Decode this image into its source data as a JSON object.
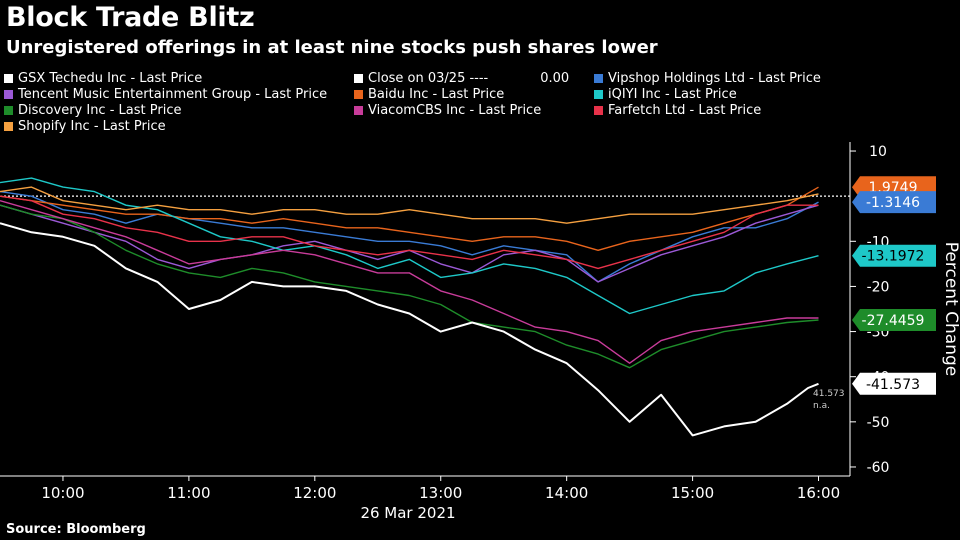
{
  "title": "Block Trade Blitz",
  "subtitle": "Unregistered offerings in at least nine stocks push shares lower",
  "source": "Source: Bloomberg",
  "legend": {
    "items": [
      {
        "label": "GSX Techedu Inc - Last Price",
        "color": "#ffffff",
        "extra": ""
      },
      {
        "label": "Close on 03/25 ----",
        "color": "#ffffff",
        "extra": "0.00"
      },
      {
        "label": "Vipshop Holdings Ltd - Last Price",
        "color": "#3a7bd5",
        "extra": ""
      },
      {
        "label": "Tencent Music Entertainment Group - Last Price",
        "color": "#9b59d6",
        "extra": ""
      },
      {
        "label": "Baidu Inc - Last Price",
        "color": "#e8641c",
        "extra": ""
      },
      {
        "label": "iQIYI Inc - Last Price",
        "color": "#1ec8c8",
        "extra": ""
      },
      {
        "label": "Discovery Inc - Last Price",
        "color": "#1e8c2a",
        "extra": ""
      },
      {
        "label": "ViacomCBS Inc - Last Price",
        "color": "#c83c9a",
        "extra": ""
      },
      {
        "label": "Farfetch Ltd - Last Price",
        "color": "#e8324a",
        "extra": ""
      },
      {
        "label": "Shopify Inc - Last Price",
        "color": "#f5a040",
        "extra": ""
      }
    ]
  },
  "chart_data": {
    "type": "line",
    "xlabel": "26 Mar 2021",
    "ylabel": "Percent Change",
    "x_ticks": [
      "10:00",
      "11:00",
      "12:00",
      "13:00",
      "14:00",
      "15:00",
      "16:00"
    ],
    "y_ticks": [
      10,
      -10,
      -20,
      -30,
      -40,
      -50,
      -60
    ],
    "ylim": [
      -62,
      12
    ],
    "xlim": [
      "09:30",
      "16:15"
    ],
    "reference_line": {
      "name": "Close on 03/25",
      "value": 0.0
    },
    "series": [
      {
        "name": "GSX Techedu Inc - Last Price",
        "color": "#ffffff",
        "points": [
          [
            "09:30",
            -6
          ],
          [
            "09:45",
            -8
          ],
          [
            "10:00",
            -9
          ],
          [
            "10:15",
            -11
          ],
          [
            "10:30",
            -16
          ],
          [
            "10:45",
            -19
          ],
          [
            "11:00",
            -25
          ],
          [
            "11:15",
            -23
          ],
          [
            "11:30",
            -19
          ],
          [
            "11:45",
            -20
          ],
          [
            "12:00",
            -20
          ],
          [
            "12:15",
            -21
          ],
          [
            "12:30",
            -24
          ],
          [
            "12:45",
            -26
          ],
          [
            "13:00",
            -30
          ],
          [
            "13:15",
            -28
          ],
          [
            "13:30",
            -30
          ],
          [
            "13:45",
            -34
          ],
          [
            "14:00",
            -37
          ],
          [
            "14:15",
            -43
          ],
          [
            "14:30",
            -50
          ],
          [
            "14:45",
            -44
          ],
          [
            "15:00",
            -53
          ],
          [
            "15:15",
            -51
          ],
          [
            "15:30",
            -50
          ],
          [
            "15:45",
            -46
          ],
          [
            "15:55",
            -42.5
          ],
          [
            "16:00",
            -41.573
          ]
        ]
      },
      {
        "name": "Vipshop Holdings Ltd - Last Price",
        "color": "#3a7bd5",
        "points": [
          [
            "09:30",
            1
          ],
          [
            "09:45",
            0
          ],
          [
            "10:00",
            -3
          ],
          [
            "10:15",
            -4
          ],
          [
            "10:30",
            -6
          ],
          [
            "10:45",
            -4
          ],
          [
            "11:00",
            -5
          ],
          [
            "11:15",
            -6
          ],
          [
            "11:30",
            -7
          ],
          [
            "11:45",
            -7
          ],
          [
            "12:00",
            -8
          ],
          [
            "12:15",
            -9
          ],
          [
            "12:30",
            -10
          ],
          [
            "12:45",
            -10
          ],
          [
            "13:00",
            -11
          ],
          [
            "13:15",
            -13
          ],
          [
            "13:30",
            -11
          ],
          [
            "13:45",
            -12
          ],
          [
            "14:00",
            -13
          ],
          [
            "14:15",
            -19
          ],
          [
            "14:30",
            -15
          ],
          [
            "14:45",
            -12
          ],
          [
            "15:00",
            -9
          ],
          [
            "15:15",
            -7
          ],
          [
            "15:30",
            -7
          ],
          [
            "15:45",
            -5
          ],
          [
            "16:00",
            -1.3146
          ]
        ]
      },
      {
        "name": "Tencent Music Entertainment Group - Last Price",
        "color": "#9b59d6",
        "points": [
          [
            "09:30",
            -2
          ],
          [
            "09:45",
            -4
          ],
          [
            "10:00",
            -6
          ],
          [
            "10:15",
            -8
          ],
          [
            "10:30",
            -10
          ],
          [
            "10:45",
            -14
          ],
          [
            "11:00",
            -16
          ],
          [
            "11:15",
            -14
          ],
          [
            "11:30",
            -13
          ],
          [
            "11:45",
            -11
          ],
          [
            "12:00",
            -10
          ],
          [
            "12:15",
            -12
          ],
          [
            "12:30",
            -14
          ],
          [
            "12:45",
            -12
          ],
          [
            "13:00",
            -15
          ],
          [
            "13:15",
            -17
          ],
          [
            "13:30",
            -13
          ],
          [
            "13:45",
            -12
          ],
          [
            "14:00",
            -14
          ],
          [
            "14:15",
            -19
          ],
          [
            "14:30",
            -16
          ],
          [
            "14:45",
            -13
          ],
          [
            "15:00",
            -11
          ],
          [
            "15:15",
            -9
          ],
          [
            "15:30",
            -6
          ],
          [
            "15:45",
            -4
          ],
          [
            "16:00",
            -2
          ]
        ]
      },
      {
        "name": "Baidu Inc - Last Price",
        "color": "#e8641c",
        "points": [
          [
            "09:30",
            0
          ],
          [
            "09:45",
            -1
          ],
          [
            "10:00",
            -2
          ],
          [
            "10:15",
            -3
          ],
          [
            "10:30",
            -4
          ],
          [
            "10:45",
            -4
          ],
          [
            "11:00",
            -5
          ],
          [
            "11:15",
            -5
          ],
          [
            "11:30",
            -6
          ],
          [
            "11:45",
            -5
          ],
          [
            "12:00",
            -6
          ],
          [
            "12:15",
            -7
          ],
          [
            "12:30",
            -7
          ],
          [
            "12:45",
            -8
          ],
          [
            "13:00",
            -9
          ],
          [
            "13:15",
            -10
          ],
          [
            "13:30",
            -9
          ],
          [
            "13:45",
            -9
          ],
          [
            "14:00",
            -10
          ],
          [
            "14:15",
            -12
          ],
          [
            "14:30",
            -10
          ],
          [
            "14:45",
            -9
          ],
          [
            "15:00",
            -8
          ],
          [
            "15:15",
            -6
          ],
          [
            "15:30",
            -4
          ],
          [
            "15:45",
            -2
          ],
          [
            "16:00",
            1.9749
          ]
        ]
      },
      {
        "name": "iQIYI Inc - Last Price",
        "color": "#1ec8c8",
        "points": [
          [
            "09:30",
            3
          ],
          [
            "09:45",
            4
          ],
          [
            "10:00",
            2
          ],
          [
            "10:15",
            1
          ],
          [
            "10:30",
            -2
          ],
          [
            "10:45",
            -3
          ],
          [
            "11:00",
            -6
          ],
          [
            "11:15",
            -9
          ],
          [
            "11:30",
            -10
          ],
          [
            "11:45",
            -12
          ],
          [
            "12:00",
            -11
          ],
          [
            "12:15",
            -13
          ],
          [
            "12:30",
            -16
          ],
          [
            "12:45",
            -14
          ],
          [
            "13:00",
            -18
          ],
          [
            "13:15",
            -17
          ],
          [
            "13:30",
            -15
          ],
          [
            "13:45",
            -16
          ],
          [
            "14:00",
            -18
          ],
          [
            "14:15",
            -22
          ],
          [
            "14:30",
            -26
          ],
          [
            "14:45",
            -24
          ],
          [
            "15:00",
            -22
          ],
          [
            "15:15",
            -21
          ],
          [
            "15:30",
            -17
          ],
          [
            "15:45",
            -15
          ],
          [
            "16:00",
            -13.1972
          ]
        ]
      },
      {
        "name": "Discovery Inc - Last Price",
        "color": "#1e8c2a",
        "points": [
          [
            "09:30",
            -2
          ],
          [
            "09:45",
            -4
          ],
          [
            "10:00",
            -5
          ],
          [
            "10:15",
            -8
          ],
          [
            "10:30",
            -12
          ],
          [
            "10:45",
            -15
          ],
          [
            "11:00",
            -17
          ],
          [
            "11:15",
            -18
          ],
          [
            "11:30",
            -16
          ],
          [
            "11:45",
            -17
          ],
          [
            "12:00",
            -19
          ],
          [
            "12:15",
            -20
          ],
          [
            "12:30",
            -21
          ],
          [
            "12:45",
            -22
          ],
          [
            "13:00",
            -24
          ],
          [
            "13:15",
            -28
          ],
          [
            "13:30",
            -29
          ],
          [
            "13:45",
            -30
          ],
          [
            "14:00",
            -33
          ],
          [
            "14:15",
            -35
          ],
          [
            "14:30",
            -38
          ],
          [
            "14:45",
            -34
          ],
          [
            "15:00",
            -32
          ],
          [
            "15:15",
            -30
          ],
          [
            "15:30",
            -29
          ],
          [
            "15:45",
            -28
          ],
          [
            "16:00",
            -27.4459
          ]
        ]
      },
      {
        "name": "ViacomCBS Inc - Last Price",
        "color": "#c83c9a",
        "points": [
          [
            "09:30",
            -1
          ],
          [
            "09:45",
            -3
          ],
          [
            "10:00",
            -5
          ],
          [
            "10:15",
            -7
          ],
          [
            "10:30",
            -9
          ],
          [
            "10:45",
            -12
          ],
          [
            "11:00",
            -15
          ],
          [
            "11:15",
            -14
          ],
          [
            "11:30",
            -13
          ],
          [
            "11:45",
            -12
          ],
          [
            "12:00",
            -13
          ],
          [
            "12:15",
            -15
          ],
          [
            "12:30",
            -17
          ],
          [
            "12:45",
            -17
          ],
          [
            "13:00",
            -21
          ],
          [
            "13:15",
            -23
          ],
          [
            "13:30",
            -26
          ],
          [
            "13:45",
            -29
          ],
          [
            "14:00",
            -30
          ],
          [
            "14:15",
            -32
          ],
          [
            "14:30",
            -37
          ],
          [
            "14:45",
            -32
          ],
          [
            "15:00",
            -30
          ],
          [
            "15:15",
            -29
          ],
          [
            "15:30",
            -28
          ],
          [
            "15:45",
            -27
          ],
          [
            "16:00",
            -27
          ]
        ]
      },
      {
        "name": "Farfetch Ltd - Last Price",
        "color": "#e8324a",
        "points": [
          [
            "09:30",
            0
          ],
          [
            "09:45",
            -1
          ],
          [
            "10:00",
            -4
          ],
          [
            "10:15",
            -5
          ],
          [
            "10:30",
            -7
          ],
          [
            "10:45",
            -8
          ],
          [
            "11:00",
            -10
          ],
          [
            "11:15",
            -10
          ],
          [
            "11:30",
            -9
          ],
          [
            "11:45",
            -9
          ],
          [
            "12:00",
            -11
          ],
          [
            "12:15",
            -12
          ],
          [
            "12:30",
            -13
          ],
          [
            "12:45",
            -12
          ],
          [
            "13:00",
            -13
          ],
          [
            "13:15",
            -14
          ],
          [
            "13:30",
            -12
          ],
          [
            "13:45",
            -13
          ],
          [
            "14:00",
            -14
          ],
          [
            "14:15",
            -16
          ],
          [
            "14:30",
            -14
          ],
          [
            "14:45",
            -12
          ],
          [
            "15:00",
            -10
          ],
          [
            "15:15",
            -8
          ],
          [
            "15:30",
            -4
          ],
          [
            "15:45",
            -2
          ],
          [
            "16:00",
            -2
          ]
        ]
      },
      {
        "name": "Shopify Inc - Last Price",
        "color": "#f5a040",
        "points": [
          [
            "09:30",
            1
          ],
          [
            "09:45",
            2
          ],
          [
            "10:00",
            -1
          ],
          [
            "10:15",
            -2
          ],
          [
            "10:30",
            -3
          ],
          [
            "10:45",
            -2
          ],
          [
            "11:00",
            -3
          ],
          [
            "11:15",
            -3
          ],
          [
            "11:30",
            -4
          ],
          [
            "11:45",
            -3
          ],
          [
            "12:00",
            -3
          ],
          [
            "12:15",
            -4
          ],
          [
            "12:30",
            -4
          ],
          [
            "12:45",
            -3
          ],
          [
            "13:00",
            -4
          ],
          [
            "13:15",
            -5
          ],
          [
            "13:30",
            -5
          ],
          [
            "13:45",
            -5
          ],
          [
            "14:00",
            -6
          ],
          [
            "14:15",
            -5
          ],
          [
            "14:30",
            -4
          ],
          [
            "14:45",
            -4
          ],
          [
            "15:00",
            -4
          ],
          [
            "15:15",
            -3
          ],
          [
            "15:30",
            -2
          ],
          [
            "15:45",
            -1
          ],
          [
            "16:00",
            0.5
          ]
        ]
      }
    ],
    "end_labels": [
      {
        "text": "1.9749",
        "value": 1.9749,
        "color": "#e8641c",
        "text_color": "#ffffff"
      },
      {
        "text": "-1.3146",
        "value": -1.3146,
        "color": "#3a7bd5",
        "text_color": "#ffffff"
      },
      {
        "text": "-13.1972",
        "value": -13.1972,
        "color": "#1ec8c8",
        "text_color": "#000000"
      },
      {
        "text": "-27.4459",
        "value": -27.4459,
        "color": "#1e8c2a",
        "text_color": "#ffffff"
      },
      {
        "text": "-41.573",
        "value": -41.573,
        "color": "#ffffff",
        "text_color": "#000000"
      }
    ],
    "annotation": {
      "lines": [
        "41.573",
        "n.a."
      ],
      "value": -41.573
    }
  }
}
